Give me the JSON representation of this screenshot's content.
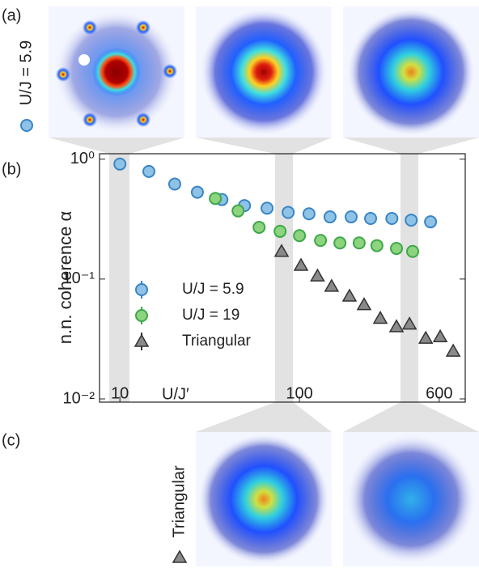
{
  "chart_data": {
    "type": "scatter",
    "xlabel": "U/J′",
    "ylabel": "n.n. coherence α",
    "xscale": "log",
    "yscale": "log",
    "xlim": [
      7.7,
      838
    ],
    "ylim": [
      0.0094,
      1.11
    ],
    "xticks": [
      10,
      100,
      600
    ],
    "yticks": [
      {
        "value": 1,
        "label": "10⁰"
      },
      {
        "value": 0.1,
        "label": "10⁻¹"
      },
      {
        "value": 0.01,
        "label": "10⁻²"
      }
    ],
    "legend": "left",
    "series": [
      {
        "name": "U/J = 5.9",
        "marker": "circle",
        "color": "#8fc3e6",
        "edgecolor": "#3a85c6",
        "x": [
          10,
          14.5,
          20.2,
          27,
          37,
          49.4,
          66,
          86.5,
          113,
          148,
          194,
          249,
          327,
          419,
          537
        ],
        "values": [
          0.91,
          0.79,
          0.62,
          0.53,
          0.46,
          0.41,
          0.39,
          0.36,
          0.35,
          0.33,
          0.33,
          0.32,
          0.32,
          0.31,
          0.3
        ]
      },
      {
        "name": "U/J = 19",
        "marker": "circle",
        "color": "#8cd47e",
        "edgecolor": "#3ea84a",
        "x": [
          34,
          45.5,
          59.6,
          78,
          100,
          131,
          168,
          215,
          270,
          347,
          427
        ],
        "values": [
          0.47,
          0.37,
          0.27,
          0.25,
          0.23,
          0.21,
          0.2,
          0.2,
          0.19,
          0.18,
          0.17
        ]
      },
      {
        "name": "Triangular",
        "marker": "triangle",
        "color": "#8a8a8a",
        "edgecolor": "#333333",
        "x": [
          79.5,
          102,
          126,
          151,
          190,
          229,
          282,
          347,
          410,
          505,
          608,
          718
        ],
        "values": [
          0.17,
          0.13,
          0.106,
          0.087,
          0.072,
          0.061,
          0.047,
          0.04,
          0.042,
          0.032,
          0.033,
          0.025
        ]
      }
    ]
  },
  "panels": {
    "labels": [
      "(a)",
      "(b)",
      "(c)"
    ],
    "row_a_label": "U/J = 5.9",
    "row_c_label": "Triangular"
  }
}
